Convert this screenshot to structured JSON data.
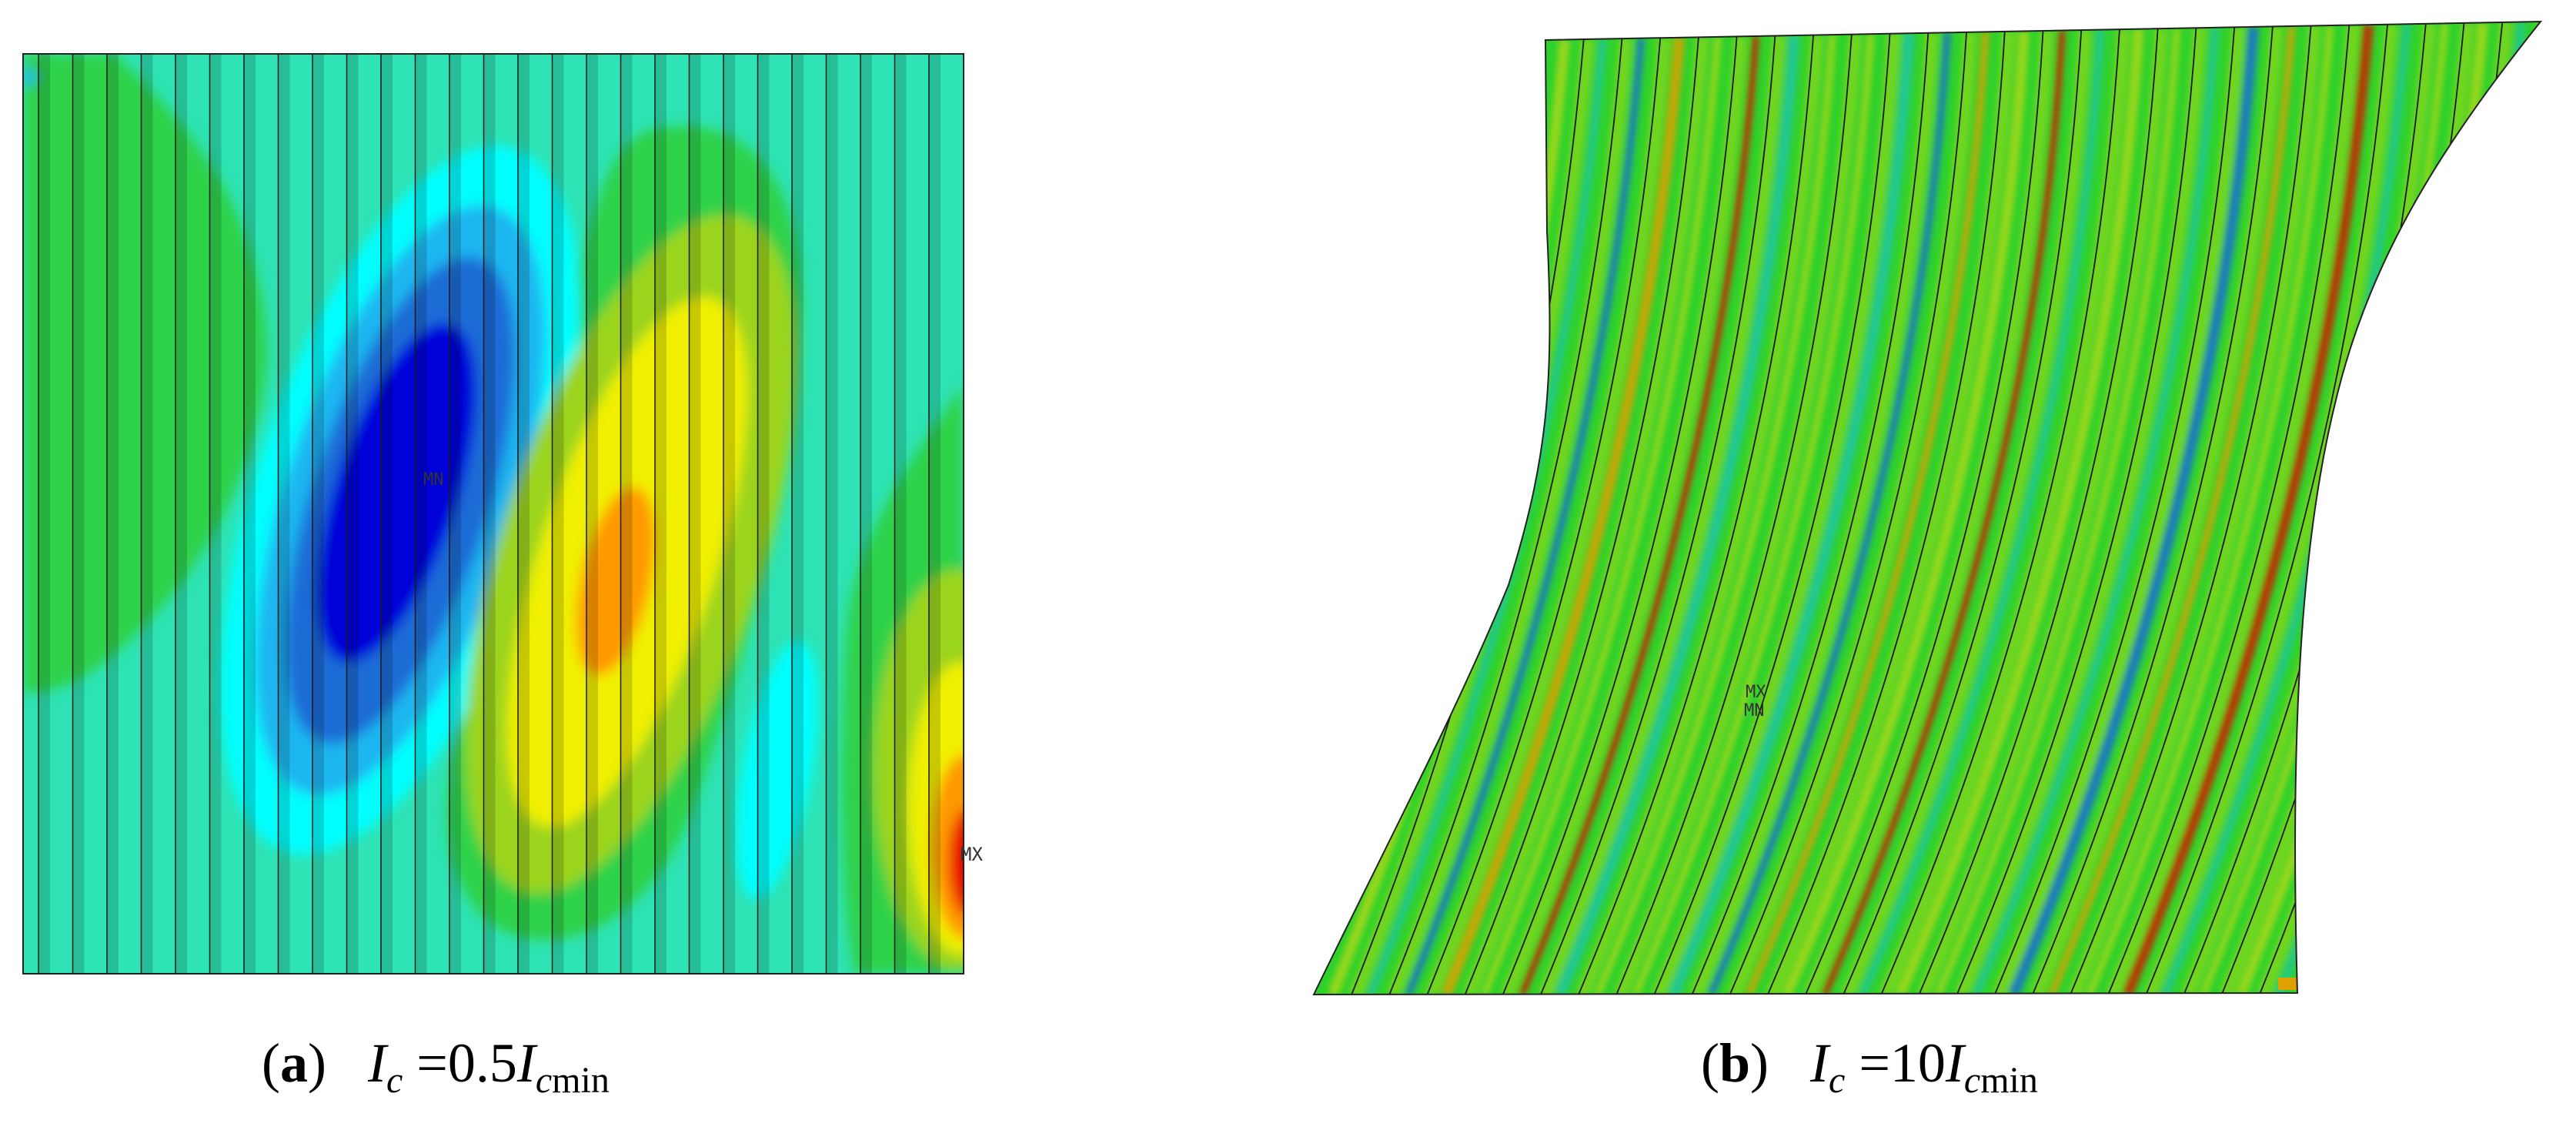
{
  "panels": [
    {
      "id": "a",
      "label_letter": "a",
      "label_open": "(",
      "label_close": ")",
      "symbol": "I",
      "subscript": "c",
      "equals": "=0.5",
      "symbol2": "I",
      "subscript2": "c",
      "subscript2_rest": "min",
      "min_marker": "MN",
      "max_marker": "MX",
      "colors": {
        "base": "#2ee3b4",
        "green": "#2fd24a",
        "cyan": "#00ffff",
        "lightblue": "#1fb6f0",
        "blue": "#1a6cd6",
        "darkblue": "#0000d8",
        "yellowgreen": "#9bd41c",
        "yellow": "#f0f000",
        "orange": "#ff9900",
        "red": "#e60000"
      }
    },
    {
      "id": "b",
      "label_letter": "b",
      "label_open": "(",
      "label_close": ")",
      "symbol": "I",
      "subscript": "c",
      "equals": "=10",
      "symbol2": "I",
      "subscript2": "c",
      "subscript2_rest": "min",
      "marker_top": "MX",
      "marker_bottom": "MN",
      "colors": {
        "base": "#2ed12c",
        "yellowgreen": "#a8d818",
        "cyan": "#22c6a8",
        "blue": "#1b6fd6",
        "orange": "#e0a000",
        "red": "#cc2200"
      }
    }
  ]
}
